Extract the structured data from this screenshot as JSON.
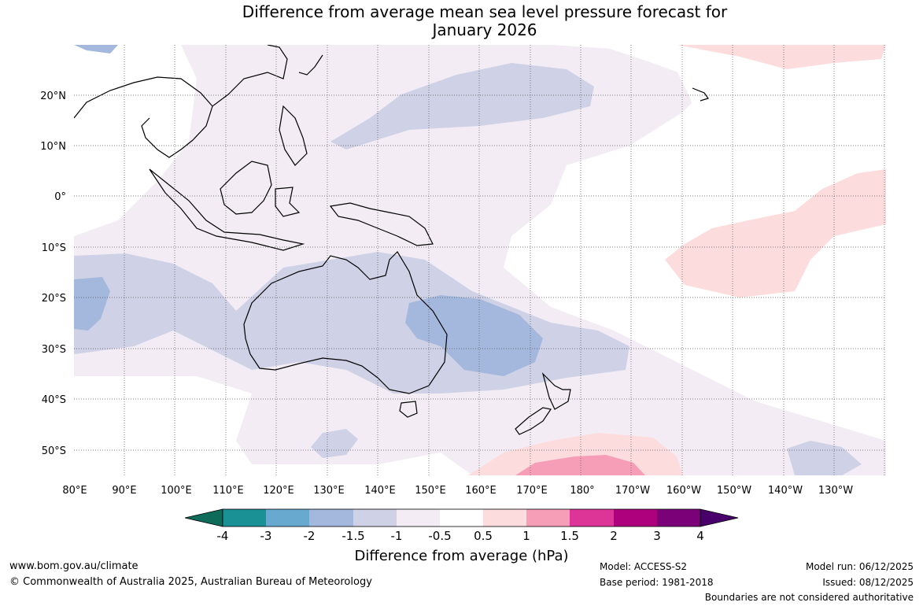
{
  "title": {
    "line1": "Difference from average mean sea level pressure forecast for",
    "line2": "January 2026"
  },
  "map": {
    "lon_labels": [
      "80°E",
      "90°E",
      "100°E",
      "110°E",
      "120°E",
      "130°E",
      "140°E",
      "150°E",
      "160°E",
      "170°E",
      "180°",
      "170°W",
      "160°W",
      "150°W",
      "140°W",
      "130°W"
    ],
    "lat_labels": [
      "20°N",
      "10°N",
      "0°",
      "10°S",
      "20°S",
      "30°S",
      "40°S",
      "50°S"
    ],
    "lon_range": [
      80,
      242
    ],
    "lat_range": [
      -55,
      30
    ],
    "gridlines": "dotted"
  },
  "colorbar": {
    "tick_labels": [
      "-4",
      "-3",
      "-2",
      "-1.5",
      "-1",
      "-0.5",
      "0.5",
      "1",
      "1.5",
      "2",
      "3",
      "4"
    ],
    "colors": [
      "#0e6b5a",
      "#1a9195",
      "#67a9cf",
      "#a3b8dc",
      "#cfd1e6",
      "#f3ecf5",
      "#ffffff",
      "#fcdcdc",
      "#f69db8",
      "#dd3497",
      "#ae017e",
      "#7a0177",
      "#49006a"
    ],
    "title": "Difference from average (hPa)"
  },
  "footer": {
    "website": "www.bom.gov.au/climate",
    "copyright": "© Commonwealth of Australia 2025, Australian Bureau of Meteorology",
    "model": "Model: ACCESS-S2",
    "base_period": "Base period: 1981-2018",
    "model_run": "Model run: 06/12/2025",
    "issued": "Issued: 08/12/2025",
    "disclaimer": "Boundaries are not considered authoritative"
  }
}
